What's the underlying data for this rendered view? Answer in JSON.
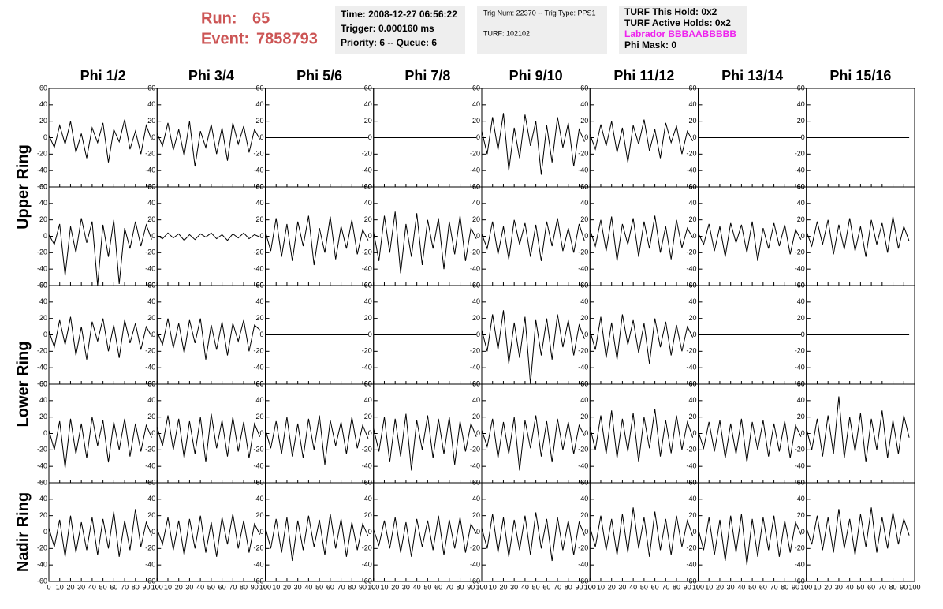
{
  "header": {
    "run_label": "Run:",
    "run": "65",
    "event_label": "Event:",
    "event": "7858793",
    "boxes": [
      [
        "Time: 2008-12-27 06:56:22",
        "Trigger: 0.000160 ms",
        "Priority: 6 -- Queue: 6"
      ],
      [
        "Trig Num: 22370 -- Trig Type: PPS1",
        "TURF: 102102"
      ],
      [
        "TURF This Hold: 0x2",
        "TURF Active Holds: 0x2",
        "Labrador BBBAABBBBB",
        "Phi Mask: 0"
      ]
    ]
  },
  "chart_data": {
    "type": "line",
    "color": "#000000",
    "column_titles": [
      "Phi 1/2",
      "Phi 3/4",
      "Phi 5/6",
      "Phi 7/8",
      "Phi 9/10",
      "Phi 11/12",
      "Phi 13/14",
      "Phi 15/16"
    ],
    "row_labels": [
      "Upper Ring",
      "Lower Ring",
      "Nadir Ring"
    ],
    "xlim": [
      0,
      100
    ],
    "xticks": [
      0,
      10,
      20,
      30,
      40,
      50,
      60,
      70,
      80,
      90,
      100
    ],
    "ylim": [
      -60,
      60
    ],
    "yticks": [
      -60,
      -40,
      -20,
      0,
      20,
      40,
      60
    ],
    "x": [
      0,
      5,
      10,
      15,
      20,
      25,
      30,
      35,
      40,
      45,
      50,
      55,
      60,
      65,
      70,
      75,
      80,
      85,
      90,
      95
    ],
    "panels": [
      [
        {
          "values": [
            3,
            -12,
            15,
            -8,
            20,
            -18,
            5,
            -25,
            12,
            -6,
            18,
            -30,
            10,
            -5,
            22,
            -14,
            8,
            -20,
            15,
            -3
          ]
        },
        {
          "values": [
            5,
            -10,
            18,
            -15,
            10,
            -22,
            20,
            -35,
            8,
            -12,
            16,
            -20,
            12,
            -28,
            18,
            -8,
            14,
            -18,
            10,
            -2
          ]
        },
        {
          "values": [
            0,
            0,
            0,
            0,
            0,
            0,
            0,
            0,
            0,
            0,
            0,
            0,
            0,
            0,
            0,
            0,
            0,
            0,
            0,
            0
          ]
        },
        {
          "values": [
            0,
            0,
            0,
            0,
            0,
            0,
            0,
            0,
            0,
            0,
            0,
            0,
            0,
            0,
            0,
            0,
            0,
            0,
            0,
            0
          ]
        },
        {
          "values": [
            8,
            -20,
            25,
            -15,
            30,
            -40,
            12,
            -25,
            28,
            -10,
            20,
            -45,
            15,
            -30,
            25,
            -12,
            18,
            -35,
            10,
            -5
          ]
        },
        {
          "values": [
            4,
            -14,
            16,
            -10,
            20,
            -18,
            12,
            -30,
            15,
            -8,
            22,
            -16,
            10,
            -25,
            18,
            -6,
            14,
            -20,
            8,
            -4
          ]
        },
        {
          "values": [
            0,
            0,
            0,
            0,
            0,
            0,
            0,
            0,
            0,
            0,
            0,
            0,
            0,
            0,
            0,
            0,
            0,
            0,
            0,
            0
          ]
        },
        {
          "values": [
            0,
            0,
            0,
            0,
            0,
            0,
            0,
            0,
            0,
            0,
            0,
            0,
            0,
            0,
            0,
            0,
            0,
            0,
            0,
            0
          ]
        }
      ],
      [
        {
          "values": [
            2,
            -10,
            15,
            -48,
            12,
            -20,
            22,
            -8,
            18,
            -60,
            14,
            -25,
            20,
            -58,
            10,
            -15,
            18,
            -12,
            14,
            -4
          ]
        },
        {
          "values": [
            1,
            -3,
            4,
            -2,
            3,
            -5,
            2,
            -4,
            3,
            -1,
            4,
            -3,
            2,
            -5,
            3,
            -2,
            4,
            -3,
            2,
            -1
          ]
        },
        {
          "values": [
            6,
            -18,
            22,
            -25,
            15,
            -30,
            18,
            -12,
            25,
            -35,
            10,
            -20,
            24,
            -28,
            12,
            -15,
            20,
            -22,
            8,
            -5
          ]
        },
        {
          "values": [
            5,
            -30,
            25,
            -20,
            30,
            -45,
            15,
            -25,
            28,
            -35,
            20,
            -15,
            22,
            -40,
            18,
            -22,
            25,
            -30,
            10,
            -3
          ]
        },
        {
          "values": [
            3,
            -15,
            18,
            -22,
            12,
            -28,
            20,
            -10,
            16,
            -25,
            14,
            -30,
            18,
            -12,
            22,
            -18,
            10,
            -20,
            15,
            -6
          ]
        },
        {
          "values": [
            8,
            -12,
            20,
            -18,
            24,
            -30,
            15,
            -10,
            22,
            -25,
            18,
            -15,
            25,
            -20,
            12,
            -28,
            20,
            -14,
            10,
            -2
          ]
        },
        {
          "values": [
            4,
            -10,
            15,
            -18,
            12,
            -25,
            16,
            -8,
            14,
            -20,
            18,
            -30,
            10,
            -15,
            16,
            -12,
            14,
            -22,
            8,
            -4
          ]
        },
        {
          "values": [
            6,
            -12,
            18,
            -10,
            20,
            -22,
            14,
            -16,
            22,
            -18,
            12,
            -25,
            20,
            -10,
            16,
            -20,
            24,
            -15,
            12,
            -6
          ]
        }
      ],
      [
        {
          "values": [
            5,
            -15,
            18,
            -12,
            22,
            -25,
            10,
            -30,
            16,
            -8,
            20,
            -20,
            12,
            -28,
            18,
            -10,
            14,
            -18,
            10,
            -2
          ]
        },
        {
          "values": [
            4,
            -12,
            20,
            -16,
            14,
            -22,
            18,
            -10,
            20,
            -30,
            12,
            -18,
            16,
            -25,
            14,
            -8,
            18,
            -20,
            12,
            6
          ]
        },
        {
          "values": [
            0,
            0,
            0,
            0,
            0,
            0,
            0,
            0,
            0,
            0,
            0,
            0,
            0,
            0,
            0,
            0,
            0,
            0,
            0,
            0
          ]
        },
        {
          "values": [
            0,
            0,
            0,
            0,
            0,
            0,
            0,
            0,
            0,
            0,
            0,
            0,
            0,
            0,
            0,
            0,
            0,
            0,
            0,
            0
          ]
        },
        {
          "values": [
            6,
            -20,
            25,
            -18,
            30,
            -35,
            15,
            -28,
            22,
            -60,
            18,
            -25,
            20,
            -30,
            25,
            -15,
            18,
            -25,
            12,
            -5
          ]
        },
        {
          "values": [
            5,
            -18,
            22,
            -28,
            15,
            -30,
            25,
            -12,
            18,
            -22,
            14,
            -35,
            20,
            -15,
            16,
            -25,
            12,
            -20,
            10,
            -3
          ]
        },
        {
          "values": [
            0,
            0,
            0,
            0,
            0,
            0,
            0,
            0,
            0,
            0,
            0,
            0,
            0,
            0,
            0,
            0,
            0,
            0,
            0,
            0
          ]
        },
        {
          "values": [
            0,
            0,
            0,
            0,
            0,
            0,
            0,
            0,
            0,
            0,
            0,
            0,
            0,
            0,
            0,
            0,
            0,
            0,
            0,
            0
          ]
        }
      ],
      [
        {
          "values": [
            4,
            -20,
            15,
            -42,
            18,
            -25,
            12,
            -30,
            20,
            -15,
            16,
            -35,
            14,
            -20,
            18,
            -28,
            12,
            -22,
            10,
            -5
          ]
        },
        {
          "values": [
            8,
            -15,
            22,
            -20,
            18,
            -30,
            15,
            -25,
            20,
            -35,
            24,
            -18,
            16,
            -28,
            20,
            -22,
            14,
            -30,
            12,
            -4
          ]
        },
        {
          "values": [
            5,
            -18,
            15,
            -25,
            20,
            -28,
            12,
            -30,
            18,
            -20,
            22,
            -38,
            16,
            -15,
            14,
            -25,
            20,
            -18,
            10,
            -6
          ]
        },
        {
          "values": [
            6,
            -22,
            20,
            -35,
            18,
            -28,
            24,
            -45,
            16,
            -20,
            22,
            -30,
            18,
            -25,
            20,
            -38,
            15,
            -22,
            12,
            -4
          ]
        },
        {
          "values": [
            4,
            -16,
            18,
            -30,
            14,
            -25,
            20,
            -45,
            16,
            -18,
            22,
            -28,
            15,
            -35,
            18,
            -20,
            14,
            -25,
            10,
            -3
          ]
        },
        {
          "values": [
            8,
            -20,
            22,
            -25,
            28,
            -30,
            18,
            -22,
            25,
            -35,
            20,
            -18,
            30,
            -28,
            16,
            -24,
            22,
            -20,
            14,
            -5
          ]
        },
        {
          "values": [
            3,
            -18,
            14,
            -22,
            16,
            -30,
            12,
            -25,
            18,
            -35,
            14,
            -20,
            16,
            -28,
            12,
            -22,
            15,
            -30,
            10,
            -4
          ]
        },
        {
          "values": [
            6,
            -20,
            18,
            -28,
            22,
            -25,
            45,
            -30,
            20,
            -22,
            25,
            -35,
            18,
            -20,
            28,
            -30,
            16,
            -25,
            22,
            -5
          ]
        }
      ],
      [
        {
          "values": [
            5,
            -18,
            15,
            -30,
            20,
            -25,
            12,
            -22,
            18,
            -28,
            16,
            -20,
            25,
            -30,
            14,
            -22,
            28,
            -18,
            12,
            -4
          ]
        },
        {
          "values": [
            4,
            -15,
            18,
            -22,
            14,
            -28,
            16,
            -20,
            20,
            -25,
            12,
            -30,
            18,
            -15,
            22,
            -20,
            14,
            -25,
            10,
            -3
          ]
        },
        {
          "values": [
            6,
            -20,
            16,
            -25,
            18,
            -35,
            14,
            -22,
            20,
            -18,
            15,
            -28,
            22,
            -20,
            16,
            -30,
            12,
            -22,
            10,
            -5
          ]
        },
        {
          "values": [
            3,
            -16,
            14,
            -20,
            18,
            -25,
            12,
            -30,
            16,
            -18,
            14,
            -22,
            20,
            -28,
            15,
            -20,
            18,
            -25,
            10,
            -2
          ]
        },
        {
          "values": [
            5,
            -20,
            22,
            -25,
            18,
            -30,
            15,
            -22,
            20,
            -28,
            24,
            -20,
            16,
            -35,
            18,
            -22,
            14,
            -28,
            12,
            -4
          ]
        },
        {
          "values": [
            6,
            -18,
            20,
            -22,
            16,
            -28,
            22,
            -25,
            30,
            -20,
            18,
            -30,
            25,
            -22,
            16,
            -28,
            20,
            -18,
            14,
            -5
          ]
        },
        {
          "values": [
            4,
            -22,
            18,
            -28,
            15,
            -35,
            20,
            -25,
            22,
            -40,
            16,
            -30,
            18,
            -22,
            20,
            -30,
            14,
            -25,
            12,
            -3
          ]
        },
        {
          "values": [
            5,
            -15,
            20,
            -22,
            18,
            -25,
            28,
            -20,
            16,
            -28,
            22,
            -18,
            30,
            -25,
            18,
            -20,
            24,
            -15,
            16,
            -4
          ]
        }
      ]
    ]
  }
}
